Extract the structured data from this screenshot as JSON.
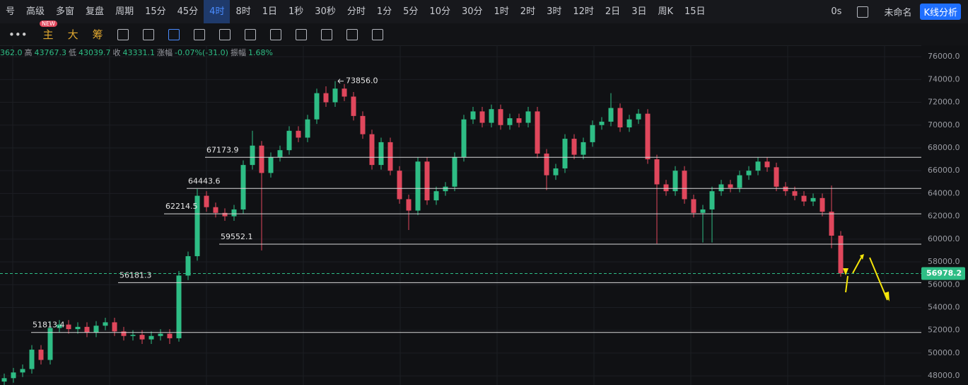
{
  "toolbar": {
    "left": [
      "号",
      "高级",
      "多窗",
      "复盘",
      "周期"
    ],
    "intervals": [
      "15分",
      "45分",
      "4时",
      "8时",
      "1日",
      "1秒",
      "30秒",
      "分时",
      "1分",
      "5分",
      "10分",
      "30分",
      "1时",
      "2时",
      "3时",
      "12时",
      "2日",
      "3日",
      "周K",
      "15日"
    ],
    "active_interval": 2,
    "right": [
      "0s",
      "未命名",
      "K线分析"
    ]
  },
  "drawing_toolbar": {
    "badge": "NEW",
    "labels": [
      "主",
      "大",
      "筹"
    ]
  },
  "info": [
    {
      "value": "362.0"
    },
    {
      "label": "高",
      "value": "43767.3"
    },
    {
      "label": "低",
      "value": "43039.7"
    },
    {
      "label": "收",
      "value": "43331.1"
    },
    {
      "label": "涨幅",
      "value": "-0.07%(-31.0)"
    },
    {
      "label": "振幅",
      "value": "1.68%"
    }
  ],
  "chart_data": {
    "type": "candlestick",
    "up_color": "#2ebd85",
    "down_color": "#e0475c",
    "grid": true,
    "ylim": [
      47200,
      77000
    ],
    "yticks": [
      {
        "value": 48000,
        "label": "48000.0"
      },
      {
        "value": 50000,
        "label": "50000.0"
      },
      {
        "value": 52000,
        "label": "52000.0"
      },
      {
        "value": 54000,
        "label": "54000.0"
      },
      {
        "value": 56000,
        "label": "56000.0"
      },
      {
        "value": 58000,
        "label": "58000.0"
      },
      {
        "value": 60000,
        "label": "60000.0"
      },
      {
        "value": 62000,
        "label": "62000.0"
      },
      {
        "value": 64000,
        "label": "64000.0"
      },
      {
        "value": 66000,
        "label": "66000.0"
      },
      {
        "value": 68000,
        "label": "68000.0"
      },
      {
        "value": 70000,
        "label": "70000.0"
      },
      {
        "value": 72000,
        "label": "72000.0"
      },
      {
        "value": 74000,
        "label": "74000.0"
      },
      {
        "value": 76000,
        "label": "76000.0"
      }
    ],
    "open": [
      47500,
      47800,
      48300,
      48600,
      50300,
      49400,
      52200,
      52500,
      52100,
      52300,
      51800,
      52400,
      52700,
      51900,
      51500,
      51600,
      51200,
      51500,
      51700,
      51300,
      56800,
      58500,
      63800,
      62800,
      62300,
      62000,
      62600,
      66500,
      68200,
      65800,
      67200,
      67800,
      69500,
      68900,
      70500,
      72800,
      72000,
      73200,
      72500,
      70800,
      69200,
      66500,
      68500,
      66000,
      63500,
      62500,
      66800,
      63400,
      64200,
      64600,
      67200,
      70500,
      71200,
      70200,
      71400,
      70000,
      70600,
      70200,
      71200,
      67500,
      65600,
      66200,
      68800,
      67400,
      68500,
      70000,
      70300,
      71500,
      69800,
      70500,
      71000,
      67000,
      64800,
      64200,
      66000,
      63500,
      62300,
      62600,
      64200,
      64800,
      64500,
      65600,
      66000,
      66800,
      66300,
      64600,
      64200,
      63800,
      63300,
      63600,
      62400,
      60300
    ],
    "high": [
      48200,
      48700,
      49000,
      50700,
      50700,
      52800,
      52900,
      52900,
      52700,
      52700,
      52800,
      53100,
      53100,
      52300,
      52000,
      52000,
      51900,
      52100,
      52100,
      57200,
      58900,
      64400,
      64200,
      63200,
      62700,
      63000,
      66900,
      69500,
      68600,
      67600,
      68200,
      69900,
      69900,
      70900,
      73200,
      73400,
      73856,
      73600,
      72900,
      71200,
      69600,
      68900,
      68900,
      66400,
      63900,
      67200,
      67200,
      64600,
      65000,
      67600,
      70900,
      71600,
      71600,
      71800,
      71800,
      71000,
      71000,
      71600,
      71600,
      67900,
      66600,
      69200,
      69200,
      68900,
      70400,
      70700,
      72800,
      71900,
      70900,
      71400,
      71400,
      67400,
      65200,
      66400,
      66400,
      63900,
      63000,
      64600,
      65200,
      65200,
      66000,
      66400,
      67200,
      67200,
      66700,
      65000,
      64600,
      64200,
      64000,
      64000,
      64700,
      60700
    ],
    "low": [
      47100,
      47400,
      47900,
      48200,
      49000,
      49000,
      51800,
      51700,
      51700,
      51400,
      51400,
      52000,
      51500,
      51100,
      51100,
      50800,
      50800,
      51100,
      50800,
      51000,
      56400,
      58100,
      62400,
      61900,
      61600,
      61600,
      62200,
      66100,
      59000,
      65400,
      66800,
      67400,
      68500,
      68500,
      70100,
      71600,
      71600,
      72100,
      70400,
      68800,
      66100,
      66100,
      65600,
      63100,
      60800,
      62100,
      63000,
      63000,
      63800,
      64200,
      66800,
      70100,
      69800,
      69800,
      69600,
      69600,
      69800,
      69800,
      67100,
      64300,
      65200,
      65800,
      67000,
      67000,
      68100,
      69600,
      69900,
      69400,
      69400,
      70100,
      66600,
      59600,
      63800,
      63800,
      63100,
      61900,
      59700,
      59700,
      63800,
      64100,
      64100,
      65200,
      65600,
      65900,
      64200,
      63800,
      63400,
      62900,
      62900,
      62000,
      59200,
      56700
    ],
    "close": [
      47800,
      48300,
      48600,
      50300,
      49400,
      52200,
      52500,
      52100,
      52300,
      51800,
      52400,
      52700,
      51900,
      51500,
      51600,
      51200,
      51500,
      51700,
      51300,
      56800,
      58500,
      63800,
      62800,
      62300,
      62000,
      62600,
      66500,
      68200,
      65800,
      67200,
      67800,
      69500,
      68900,
      70500,
      72800,
      72000,
      73200,
      72500,
      70800,
      69200,
      66500,
      68500,
      66000,
      63500,
      62500,
      66800,
      63400,
      64200,
      64600,
      67200,
      70500,
      71200,
      70200,
      71400,
      70000,
      70600,
      70200,
      71200,
      67500,
      65600,
      66200,
      68800,
      67400,
      68500,
      70000,
      70300,
      71500,
      69800,
      70500,
      71000,
      67000,
      64800,
      64200,
      66000,
      63500,
      62300,
      62600,
      64200,
      64800,
      64500,
      65600,
      66000,
      66800,
      66300,
      64600,
      64200,
      63800,
      63300,
      63600,
      62400,
      60300,
      56978.2
    ],
    "levels": [
      67173.9,
      64443.6,
      62214.5,
      59552.1,
      56181.3,
      51813.4
    ],
    "annotations": [
      {
        "text": "73856.0",
        "candle": 36
      }
    ]
  }
}
